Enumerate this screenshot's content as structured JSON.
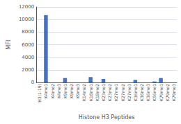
{
  "chart_data": {
    "type": "bar",
    "categories": [
      "H3(1-19)",
      "K4me1",
      "K4me2",
      "K4me3",
      "K9me1",
      "K9me2",
      "K9me3",
      "K14me2",
      "K18me1",
      "K18me2",
      "K23me1",
      "K23me2",
      "K27me1",
      "K27me2",
      "K27me3",
      "K36me1",
      "K36me2",
      "K36me3",
      "K56me1",
      "K79me1",
      "K79me2",
      "K79me3"
    ],
    "values": [
      0,
      10700,
      0,
      0,
      700,
      0,
      0,
      0,
      850,
      0,
      550,
      0,
      0,
      0,
      0,
      400,
      0,
      0,
      150,
      700,
      0,
      0
    ],
    "color": "#4472C4",
    "xlabel": "Histone H3 Peptides",
    "ylabel": "MFI",
    "ylim": [
      0,
      12000
    ],
    "yticks": [
      0,
      2000,
      4000,
      6000,
      8000,
      10000,
      12000
    ],
    "grid": true
  }
}
